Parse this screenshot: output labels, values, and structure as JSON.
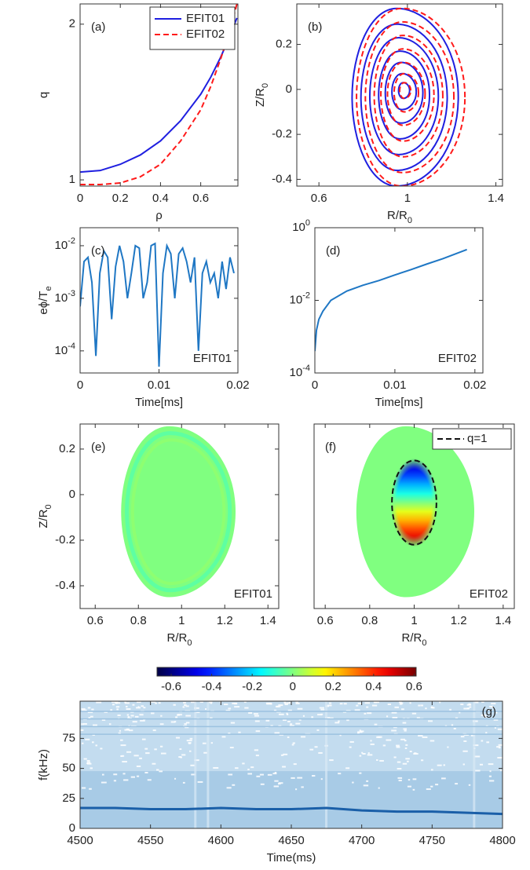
{
  "chart_data": [
    {
      "type": "line",
      "panel": "(a)",
      "xlabel": "ρ",
      "ylabel": "q",
      "x": [
        0,
        0.1,
        0.2,
        0.3,
        0.4,
        0.5,
        0.6,
        0.65,
        0.7,
        0.75,
        0.78
      ],
      "xlim": [
        0,
        0.785
      ],
      "xticks": [
        0,
        0.2,
        0.4,
        0.6
      ],
      "ylim": [
        0.96,
        2.13
      ],
      "yticks": [
        1,
        2
      ],
      "legend": "upper right",
      "series": [
        {
          "name": "EFIT01",
          "color": "#1f1fe0",
          "dash": false,
          "values": [
            1.05,
            1.06,
            1.1,
            1.16,
            1.25,
            1.38,
            1.55,
            1.66,
            1.79,
            1.94,
            2.04
          ]
        },
        {
          "name": "EFIT02",
          "color": "#ff1a1a",
          "dash": true,
          "values": [
            0.97,
            0.97,
            0.98,
            1.02,
            1.1,
            1.25,
            1.45,
            1.6,
            1.78,
            1.98,
            2.13
          ]
        }
      ]
    },
    {
      "type": "contour",
      "panel": "(b)",
      "xlabel": {
        "text": "R/R",
        "sub": "0"
      },
      "ylabel": {
        "text": "Z/R",
        "sub": "0"
      },
      "xlim": [
        0.5,
        1.43
      ],
      "xticks": [
        0.6,
        1,
        1.4
      ],
      "ylim": [
        -0.43,
        0.38
      ],
      "yticks": [
        -0.4,
        -0.2,
        0,
        0.2
      ],
      "series": [
        {
          "color": "#1f1fe0",
          "dash": false,
          "surfaces": [
            {
              "x": [
                0.75,
                1.23
              ],
              "y": [
                -0.43,
                0.36
              ]
            },
            {
              "x": [
                0.79,
                1.18
              ],
              "y": [
                -0.36,
                0.29
              ]
            },
            {
              "x": [
                0.83,
                1.14
              ],
              "y": [
                -0.29,
                0.23
              ]
            },
            {
              "x": [
                0.87,
                1.1
              ],
              "y": [
                -0.22,
                0.17
              ]
            },
            {
              "x": [
                0.9,
                1.07
              ],
              "y": [
                -0.15,
                0.12
              ]
            },
            {
              "x": [
                0.93,
                1.04
              ],
              "y": [
                -0.09,
                0.07
              ]
            },
            {
              "x": [
                0.96,
                1.01
              ],
              "y": [
                -0.04,
                0.03
              ]
            }
          ]
        },
        {
          "color": "#ff1a1a",
          "dash": true,
          "surfaces": [
            {
              "x": [
                0.77,
                1.26
              ],
              "y": [
                -0.43,
                0.36
              ]
            },
            {
              "x": [
                0.81,
                1.21
              ],
              "y": [
                -0.37,
                0.3
              ]
            },
            {
              "x": [
                0.85,
                1.16
              ],
              "y": [
                -0.3,
                0.24
              ]
            },
            {
              "x": [
                0.88,
                1.12
              ],
              "y": [
                -0.23,
                0.18
              ]
            },
            {
              "x": [
                0.91,
                1.08
              ],
              "y": [
                -0.16,
                0.12
              ]
            },
            {
              "x": [
                0.94,
                1.05
              ],
              "y": [
                -0.1,
                0.07
              ]
            },
            {
              "x": [
                0.965,
                1.015
              ],
              "y": [
                -0.04,
                0.03
              ]
            }
          ]
        }
      ]
    },
    {
      "type": "line",
      "panel": "(c)",
      "annotation": "EFIT01",
      "xlabel": "Time[ms]",
      "ylabel": {
        "text": "eϕ/T",
        "sub": "e"
      },
      "yscale": "log",
      "xlim": [
        0,
        0.02
      ],
      "xticks": [
        0,
        0.01,
        0.02
      ],
      "ylim": [
        3.8e-05,
        0.022
      ],
      "yticks": [
        {
          "value": 0.0001,
          "label": "10",
          "exponent": "-4"
        },
        {
          "value": 0.001,
          "label": "10",
          "exponent": "-3"
        },
        {
          "value": 0.01,
          "label": "10",
          "exponent": "-2"
        }
      ],
      "x": [
        0,
        0.0005,
        0.001,
        0.0015,
        0.002,
        0.0025,
        0.003,
        0.0035,
        0.004,
        0.0045,
        0.005,
        0.0055,
        0.006,
        0.0065,
        0.007,
        0.0075,
        0.008,
        0.0085,
        0.009,
        0.0095,
        0.01,
        0.0105,
        0.011,
        0.0115,
        0.012,
        0.0125,
        0.013,
        0.0135,
        0.014,
        0.0145,
        0.015,
        0.0155,
        0.016,
        0.0165,
        0.017,
        0.0175,
        0.018,
        0.0185,
        0.019,
        0.0195
      ],
      "series": [
        {
          "color": "#1f77c4",
          "values": [
            0.0007,
            0.005,
            0.006,
            0.002,
            8e-05,
            0.003,
            0.008,
            0.006,
            0.0004,
            0.004,
            0.01,
            0.005,
            0.001,
            0.003,
            0.01,
            0.009,
            0.001,
            0.002,
            0.01,
            0.011,
            5e-05,
            0.003,
            0.01,
            0.007,
            0.001,
            0.007,
            0.009,
            0.005,
            0.002,
            0.006,
            0.0001,
            0.003,
            0.005,
            0.002,
            0.003,
            0.001,
            0.005,
            0.0015,
            0.006,
            0.003
          ]
        }
      ]
    },
    {
      "type": "line",
      "panel": "(d)",
      "annotation": "EFIT02",
      "xlabel": "Time[ms]",
      "yscale": "log",
      "xlim": [
        0,
        0.021
      ],
      "xticks": [
        0,
        0.01,
        0.02
      ],
      "ylim": [
        0.0001,
        1
      ],
      "yticks": [
        {
          "value": 0.0001,
          "label": "10",
          "exponent": "-4"
        },
        {
          "value": 0.01,
          "label": "10",
          "exponent": "-2"
        },
        {
          "value": 1,
          "label": "10",
          "exponent": "0"
        }
      ],
      "x": [
        0,
        0.0002,
        0.0005,
        0.001,
        0.002,
        0.004,
        0.006,
        0.008,
        0.01,
        0.012,
        0.014,
        0.016,
        0.019
      ],
      "series": [
        {
          "color": "#1f77c4",
          "values": [
            0.0004,
            0.0015,
            0.003,
            0.005,
            0.01,
            0.018,
            0.026,
            0.035,
            0.05,
            0.07,
            0.1,
            0.14,
            0.25
          ]
        }
      ]
    },
    {
      "type": "heatmap",
      "panel": "(e)",
      "annotation": "EFIT01",
      "xlabel": {
        "text": "R/R",
        "sub": "0"
      },
      "ylabel": {
        "text": "Z/R",
        "sub": "0"
      },
      "xlim": [
        0.53,
        1.45
      ],
      "xticks": [
        0.6,
        0.8,
        1,
        1.2,
        1.4
      ],
      "ylim": [
        -0.5,
        0.31
      ],
      "yticks": [
        -0.4,
        -0.2,
        0,
        0.2
      ],
      "boundary": {
        "x": [
          0.72,
          1.25
        ],
        "y": [
          -0.45,
          0.3
        ]
      },
      "field_range": [
        -0.1,
        0.05
      ]
    },
    {
      "type": "heatmap",
      "panel": "(f)",
      "annotation": "EFIT02",
      "xlabel": {
        "text": "R/R",
        "sub": "0"
      },
      "xlim": [
        0.55,
        1.45
      ],
      "xticks": [
        0.6,
        0.8,
        1,
        1.2,
        1.4
      ],
      "ylim": [
        -0.5,
        0.31
      ],
      "boundary": {
        "x": [
          0.74,
          1.27
        ],
        "y": [
          -0.45,
          0.3
        ]
      },
      "field_range": [
        -0.6,
        0.6
      ],
      "contour": {
        "name": "q=1",
        "x": [
          0.9,
          1.1
        ],
        "y": [
          -0.22,
          0.15
        ]
      },
      "legend": "upper right"
    },
    {
      "type": "colorbar",
      "colormap": "jet",
      "clim": [
        -0.6,
        0.6
      ],
      "xlim": [
        -0.67,
        0.61
      ],
      "xticks": [
        -0.6,
        -0.4,
        -0.2,
        0,
        0.2,
        0.4,
        0.6
      ]
    },
    {
      "type": "spectrogram",
      "panel": "(g)",
      "xlabel": "Time(ms)",
      "ylabel": "f(kHz)",
      "xlim": [
        4500,
        4800
      ],
      "xticks": [
        4500,
        4550,
        4600,
        4650,
        4700,
        4750,
        4800
      ],
      "ylim": [
        0,
        106
      ],
      "yticks": [
        0,
        25,
        50,
        75
      ],
      "x": [
        4500,
        4525,
        4550,
        4575,
        4600,
        4625,
        4650,
        4675,
        4700,
        4725,
        4750,
        4775,
        4800
      ],
      "series": [
        {
          "color": "#1a5fa8",
          "values": [
            17,
            17,
            16,
            16,
            17,
            16,
            16,
            17,
            15,
            14,
            14,
            13,
            12
          ]
        }
      ]
    }
  ]
}
